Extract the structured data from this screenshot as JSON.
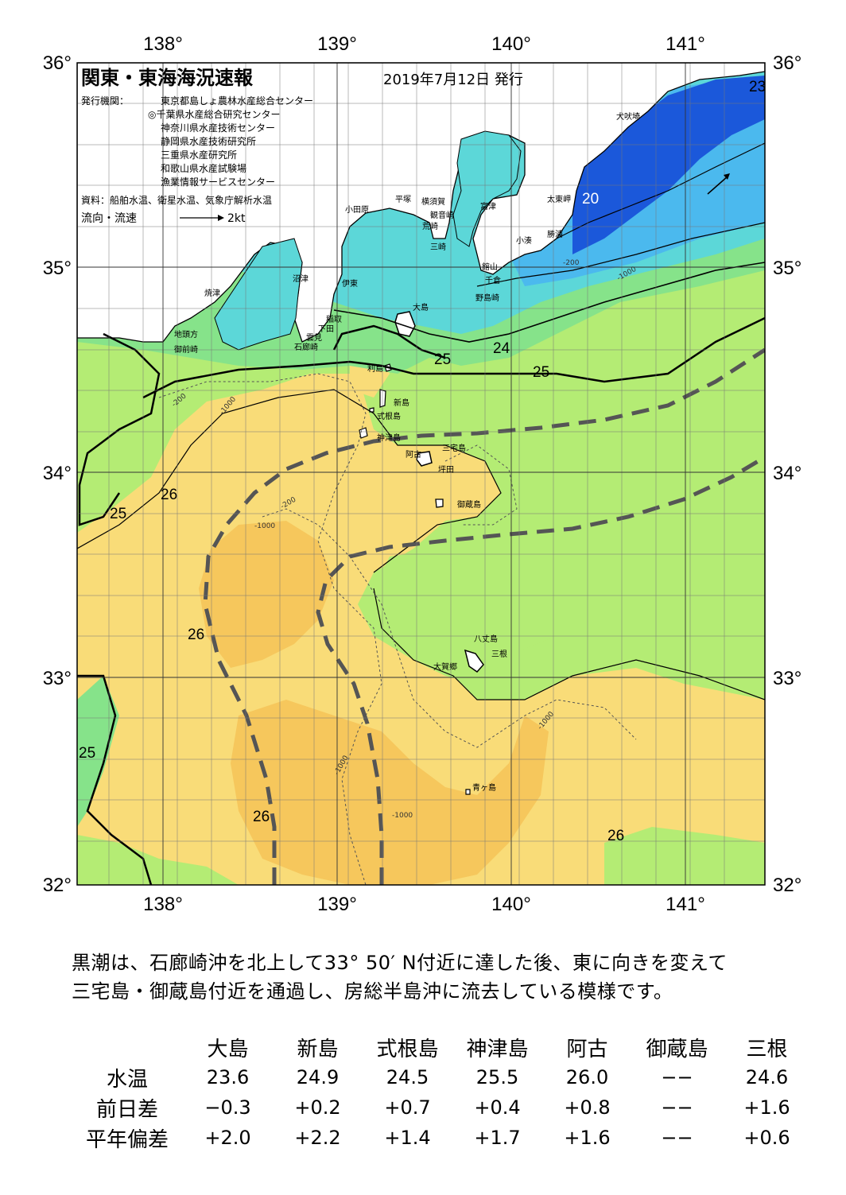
{
  "header": {
    "title": "関東・東海海況速報",
    "date": "2019年7月12日 発行",
    "issuer_label": "発行機関：",
    "issuers": [
      "東京都島しょ農林水産総合センター",
      "◎千葉県水産総合研究センター",
      "神奈川県水産技術センター",
      "静岡県水産技術研究所",
      "三重県水産研究所",
      "和歌山県水産試験場",
      "漁業情報サービスセンター"
    ],
    "source": "資料：船舶水温、衛星水温、気象庁解析水温",
    "legend_label": "流向・流速",
    "legend_speed": "2kt"
  },
  "map_axes": {
    "lon_labels": [
      "138°",
      "139°",
      "140°",
      "141°"
    ],
    "lat_labels": [
      "36°",
      "35°",
      "34°",
      "33°",
      "32°"
    ]
  },
  "place_labels": [
    "犬吠埼",
    "太東岬",
    "勝浦",
    "小湊",
    "館山",
    "千倉",
    "野島崎",
    "富津",
    "観音崎",
    "荒崎",
    "三崎",
    "横須賀",
    "平塚",
    "小田原",
    "沼津",
    "伊東",
    "焼津",
    "稲取",
    "下田",
    "雲見",
    "石廊崎",
    "地頭方",
    "御前崎",
    "大島",
    "利島",
    "新島",
    "式根島",
    "神津島",
    "三宅島",
    "阿古",
    "坪田",
    "御蔵島",
    "八丈島",
    "三根",
    "大賀郷",
    "青ヶ島"
  ],
  "isotherm_labels": [
    "20",
    "23",
    "24",
    "25",
    "25",
    "25",
    "25",
    "26",
    "26",
    "26",
    "26"
  ],
  "depth_labels": [
    "-200",
    "-1000"
  ],
  "description": [
    "黒潮は、石廊崎沖を北上して33° 50′ N付近に達した後、東に向きを変えて",
    "三宅島・御蔵島付近を通過し、房総半島沖に流去している模様です。"
  ],
  "stats": {
    "stations": [
      "大島",
      "新島",
      "式根島",
      "神津島",
      "阿古",
      "御蔵島",
      "三根"
    ],
    "rows": [
      {
        "label": "水温",
        "values": [
          "23.6",
          "24.9",
          "24.5",
          "25.5",
          "26.0",
          "−−",
          "24.6"
        ]
      },
      {
        "label": "前日差",
        "values": [
          "−0.3",
          "+0.2",
          "+0.7",
          "+0.4",
          "+0.8",
          "−−",
          "+1.6"
        ]
      },
      {
        "label": "平年偏差",
        "values": [
          "+2.0",
          "+2.2",
          "+1.4",
          "+1.7",
          "+1.6",
          "−−",
          "+0.6"
        ]
      }
    ]
  },
  "colors": {
    "warm_26": "#f9dc78",
    "warmest": "#f6c75c",
    "temp_25": "#b4ec74",
    "temp_24": "#86e38a",
    "temp_23": "#5cd7d8",
    "temp_22": "#4bb9ee",
    "cold_20": "#1b58da",
    "land": "#ffffff",
    "kuroshio_axis": "#555555"
  }
}
